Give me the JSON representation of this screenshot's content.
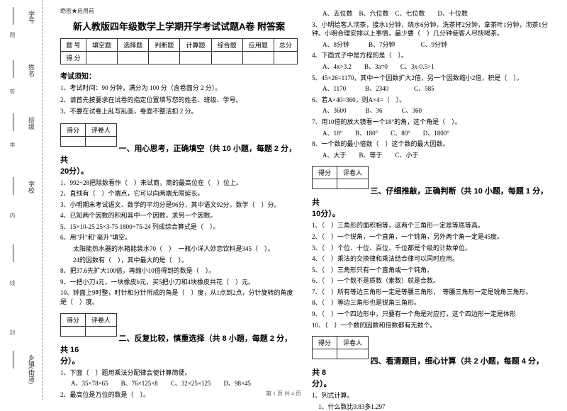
{
  "binding": {
    "labels": [
      "学号",
      "姓名",
      "班级",
      "学校",
      "乡镇(街道)"
    ],
    "marks": [
      "题",
      "答",
      "本",
      "内",
      "线",
      "封"
    ]
  },
  "secret": "绝密★启用前",
  "title": "新人教版四年级数学上学期开学考试试题A卷 附答案",
  "scoreTable": {
    "headers": [
      "题 号",
      "填空题",
      "选择题",
      "判断题",
      "计算题",
      "综合题",
      "应用题",
      "总分"
    ],
    "row2": "得 分"
  },
  "notice": {
    "title": "考试须知：",
    "items": [
      "1、考试时间：90 分钟，满分为 100 分（含卷面分 2 分）。",
      "2、请首先按要求在试卷的指定位置填写您的姓名、班级、学号。",
      "3、不要在试卷上乱写乱画，卷面不整洁扣 2 分。"
    ]
  },
  "miniTable": {
    "c1": "得分",
    "c2": "评卷人"
  },
  "sec1": {
    "title": "一、用心思考，正确填空（共 10 小题，每题 2 分，共",
    "pts": "20分）。"
  },
  "q1": [
    "1、992÷28把除数看作（　）来试商，商的最高位在（　）位上。",
    "2、直线有（　）个端点，它可以向两端无限延长。",
    "3、小明期末考试语文、数学的平均分是96分，其中语文92分。数学（　）分。",
    "4、已知两个因数的积和其中一个因数，求另一个因数。",
    "5、15×10-25   25×3-75   1800÷75-24   列成综合算式是（　）。",
    "6、用\"升\"和\"毫升\"填空。",
    "　　太阳能热水器的水箱能装水70（　）　一瓶小洋人妙恋饮料是345（　）。",
    "　　24的因数有（　），其中最大的是（　）。",
    "8、把37.6先扩大100倍，再缩小10倍得到的数是（　）。",
    "9、一把小刀a元，一块橡皮b元，买5把小刀和4块橡皮共花（　）元。",
    "10、钟面上9时整，时针和分针所成的角是（　）度，从1点到2点，分针旋转的角度是（　）度。"
  ],
  "sec2": {
    "title": "二、反复比较，慎重选择（共 8 小题，每题 2 分，共 16",
    "pts": "分）。"
  },
  "q2_1": "1、下面（　）题用乘法分配律会使计算简便。",
  "q2_1_opts": "A、35×78×65　　B、76×125×8　　C、32×25×125　　D、98×45",
  "q2_2": "2、最高位是万位的数是（　）。",
  "q2_2_opts": "A、五位数　B、六位数　C、七位数　　D、十位数",
  "q2_3": "3、小明给客人沏茶，接水1分钟，烧水6分钟，洗茶杯2分钟，拿茶叶1分钟，沏茶1分钟。小明合理安排以上事情，最少要（　）几分钟使客人尽快喝茶。",
  "q2_3_opts": "A、8分钟　　　B、7分钟　　　　C、9分钟",
  "q2_4": "4、下面式子中是方程的是（　）。",
  "q2_4_opts": "A、4x>3.2　　B、3a=0　　C、3x-0.5>1",
  "q2_5": "5、45×26=1170，其中一个因数扩大2倍，另一个因数缩小2倍，积是（　）。",
  "q2_5_opts": "A、1170　　　B、2340　　　　C、585",
  "q2_6": "6、若A×40=360，则A×4=（　）。",
  "q2_6_opts": "A、3600　　　B、36　　　C、360",
  "q2_7": "7、用10倍的放大镜看一个18°的角，这个角是（　）。",
  "q2_7_opts": "A、18°　　B、180°　　C、80°　　D、1800°",
  "q2_8": "8、一个数的最小倍数（　）这个数的最大因数。",
  "q2_8_opts": "A、大于　　B、等于　　C、小于",
  "sec3": {
    "title": "三、仔细推敲，正确判断（共 10 小题，每题 1 分，共",
    "pts": "10分）。"
  },
  "q3": [
    "1、（　）三角形的面积相等，这两个三角形一定是等底等高。",
    "2、（　）一个锐角，一个直角，一个钝角，另外两个角一定是45度。",
    "3、（　）个位、十位、百位、千位都是个级的计数单位。",
    "4、（　）乘法的交换律和乘法结合律可以同时应用。",
    "5、（　）三角形只有一个直角或一个钝角。",
    "6、（　）一个数不是质数（素数）就是合数。",
    "7、（　）所有等边三角形一定是等腰三角形，　等腰三角形一定是锐角三角形。",
    "8、（　）等边三角形也是锐角三角形。",
    "9、（　）一个四边形中，只要有一个角是对应打，这个四边形一定是体形",
    "10、（　）一个数的因数和倍数都有无数个。"
  ],
  "sec4": {
    "title": "四、看清题目，细心计算（共 2 小题，每题 4 分，共 8",
    "pts": "分）。"
  },
  "q4_1": "1、列式计算。",
  "q4_1_sub": "　1、什么数比9.83多1.297",
  "footer": "第 1 页  共 4 页"
}
